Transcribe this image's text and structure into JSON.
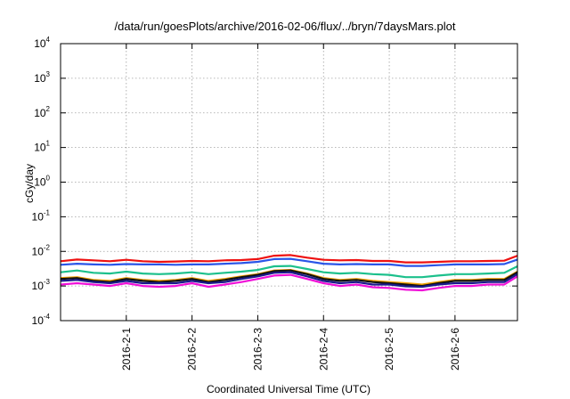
{
  "chart_data": {
    "type": "line",
    "title": "/data/run/goesPlots/archive/2016-02-06/flux/../bryn/7daysMars.plot",
    "xlabel": "Coordinated Universal Time (UTC)",
    "ylabel": "cGy/day",
    "yscale": "log",
    "ylim": [
      0.0001,
      10000
    ],
    "y_ticks": [
      {
        "base": "10",
        "exp": "-4"
      },
      {
        "base": "10",
        "exp": "-3"
      },
      {
        "base": "10",
        "exp": "-2"
      },
      {
        "base": "10",
        "exp": "-1"
      },
      {
        "base": "10",
        "exp": "0"
      },
      {
        "base": "10",
        "exp": "1"
      },
      {
        "base": "10",
        "exp": "2"
      },
      {
        "base": "10",
        "exp": "3"
      },
      {
        "base": "10",
        "exp": "4"
      }
    ],
    "xlim": [
      0,
      6.95
    ],
    "x_tick_values": [
      1,
      2,
      3,
      4,
      5,
      6
    ],
    "x_ticks": [
      "2016-2-1",
      "2016-2-2",
      "2016-2-3",
      "2016-2-4",
      "2016-2-5",
      "2016-2-6"
    ],
    "x": [
      0.0,
      0.25,
      0.5,
      0.75,
      1.0,
      1.25,
      1.5,
      1.75,
      2.0,
      2.25,
      2.5,
      2.75,
      3.0,
      3.25,
      3.5,
      3.75,
      4.0,
      4.25,
      4.5,
      4.75,
      5.0,
      5.25,
      5.5,
      5.75,
      6.0,
      6.25,
      6.5,
      6.75,
      6.95
    ],
    "series": [
      {
        "name": "red",
        "color": "#ee1111",
        "values": [
          0.0052,
          0.0058,
          0.0055,
          0.0052,
          0.0057,
          0.0052,
          0.005,
          0.0051,
          0.0053,
          0.0052,
          0.0055,
          0.0056,
          0.006,
          0.0075,
          0.0078,
          0.0066,
          0.0057,
          0.0055,
          0.0056,
          0.0053,
          0.0053,
          0.0048,
          0.0048,
          0.005,
          0.0052,
          0.0052,
          0.0053,
          0.0054,
          0.0075
        ]
      },
      {
        "name": "blue",
        "color": "#2a55e8",
        "values": [
          0.0041,
          0.0044,
          0.0042,
          0.0041,
          0.0043,
          0.0042,
          0.0042,
          0.0041,
          0.0042,
          0.0042,
          0.0044,
          0.0046,
          0.005,
          0.006,
          0.0061,
          0.0052,
          0.0044,
          0.0042,
          0.0043,
          0.0042,
          0.0042,
          0.0038,
          0.0038,
          0.004,
          0.0042,
          0.0042,
          0.0042,
          0.0043,
          0.0058
        ]
      },
      {
        "name": "teal",
        "color": "#1cc08c",
        "values": [
          0.0025,
          0.0028,
          0.0024,
          0.0023,
          0.0026,
          0.0023,
          0.0022,
          0.0023,
          0.0025,
          0.0022,
          0.0024,
          0.0026,
          0.0029,
          0.0037,
          0.0038,
          0.0031,
          0.0025,
          0.0023,
          0.0024,
          0.0022,
          0.0021,
          0.0018,
          0.0018,
          0.002,
          0.0022,
          0.0022,
          0.0023,
          0.0024,
          0.0037
        ]
      },
      {
        "name": "orange",
        "color": "#f0a000",
        "values": [
          0.0017,
          0.0018,
          0.0015,
          0.0014,
          0.0017,
          0.0015,
          0.0014,
          0.0015,
          0.0017,
          0.0014,
          0.0016,
          0.0019,
          0.0022,
          0.0028,
          0.0029,
          0.0023,
          0.0017,
          0.0015,
          0.0016,
          0.0014,
          0.0013,
          0.0012,
          0.0011,
          0.0013,
          0.0015,
          0.0015,
          0.0016,
          0.0016,
          0.0026
        ]
      },
      {
        "name": "black",
        "color": "#111111",
        "values": [
          0.0016,
          0.0017,
          0.0014,
          0.0013,
          0.0016,
          0.0014,
          0.0013,
          0.0014,
          0.0016,
          0.0013,
          0.0015,
          0.0018,
          0.0021,
          0.0027,
          0.0028,
          0.0022,
          0.0016,
          0.0014,
          0.0015,
          0.0013,
          0.0012,
          0.0011,
          0.001,
          0.0012,
          0.0014,
          0.0014,
          0.0015,
          0.0015,
          0.0025
        ]
      },
      {
        "name": "navy",
        "color": "#1a1a8c",
        "values": [
          0.0014,
          0.0015,
          0.0013,
          0.0012,
          0.0014,
          0.0012,
          0.0012,
          0.0012,
          0.0014,
          0.0012,
          0.0013,
          0.0016,
          0.0019,
          0.0024,
          0.0025,
          0.0019,
          0.0014,
          0.0012,
          0.0013,
          0.0011,
          0.0011,
          0.00098,
          0.00095,
          0.0011,
          0.0012,
          0.0012,
          0.0013,
          0.0013,
          0.0022
        ]
      },
      {
        "name": "magenta",
        "color": "#f010d8",
        "values": [
          0.0011,
          0.0012,
          0.0011,
          0.001,
          0.0012,
          0.001,
          0.00095,
          0.001,
          0.0012,
          0.00095,
          0.0011,
          0.0013,
          0.0016,
          0.002,
          0.0021,
          0.0016,
          0.0012,
          0.001,
          0.0011,
          0.00092,
          0.00088,
          0.00078,
          0.00075,
          0.00088,
          0.001,
          0.001,
          0.0011,
          0.0011,
          0.0019
        ]
      }
    ]
  }
}
